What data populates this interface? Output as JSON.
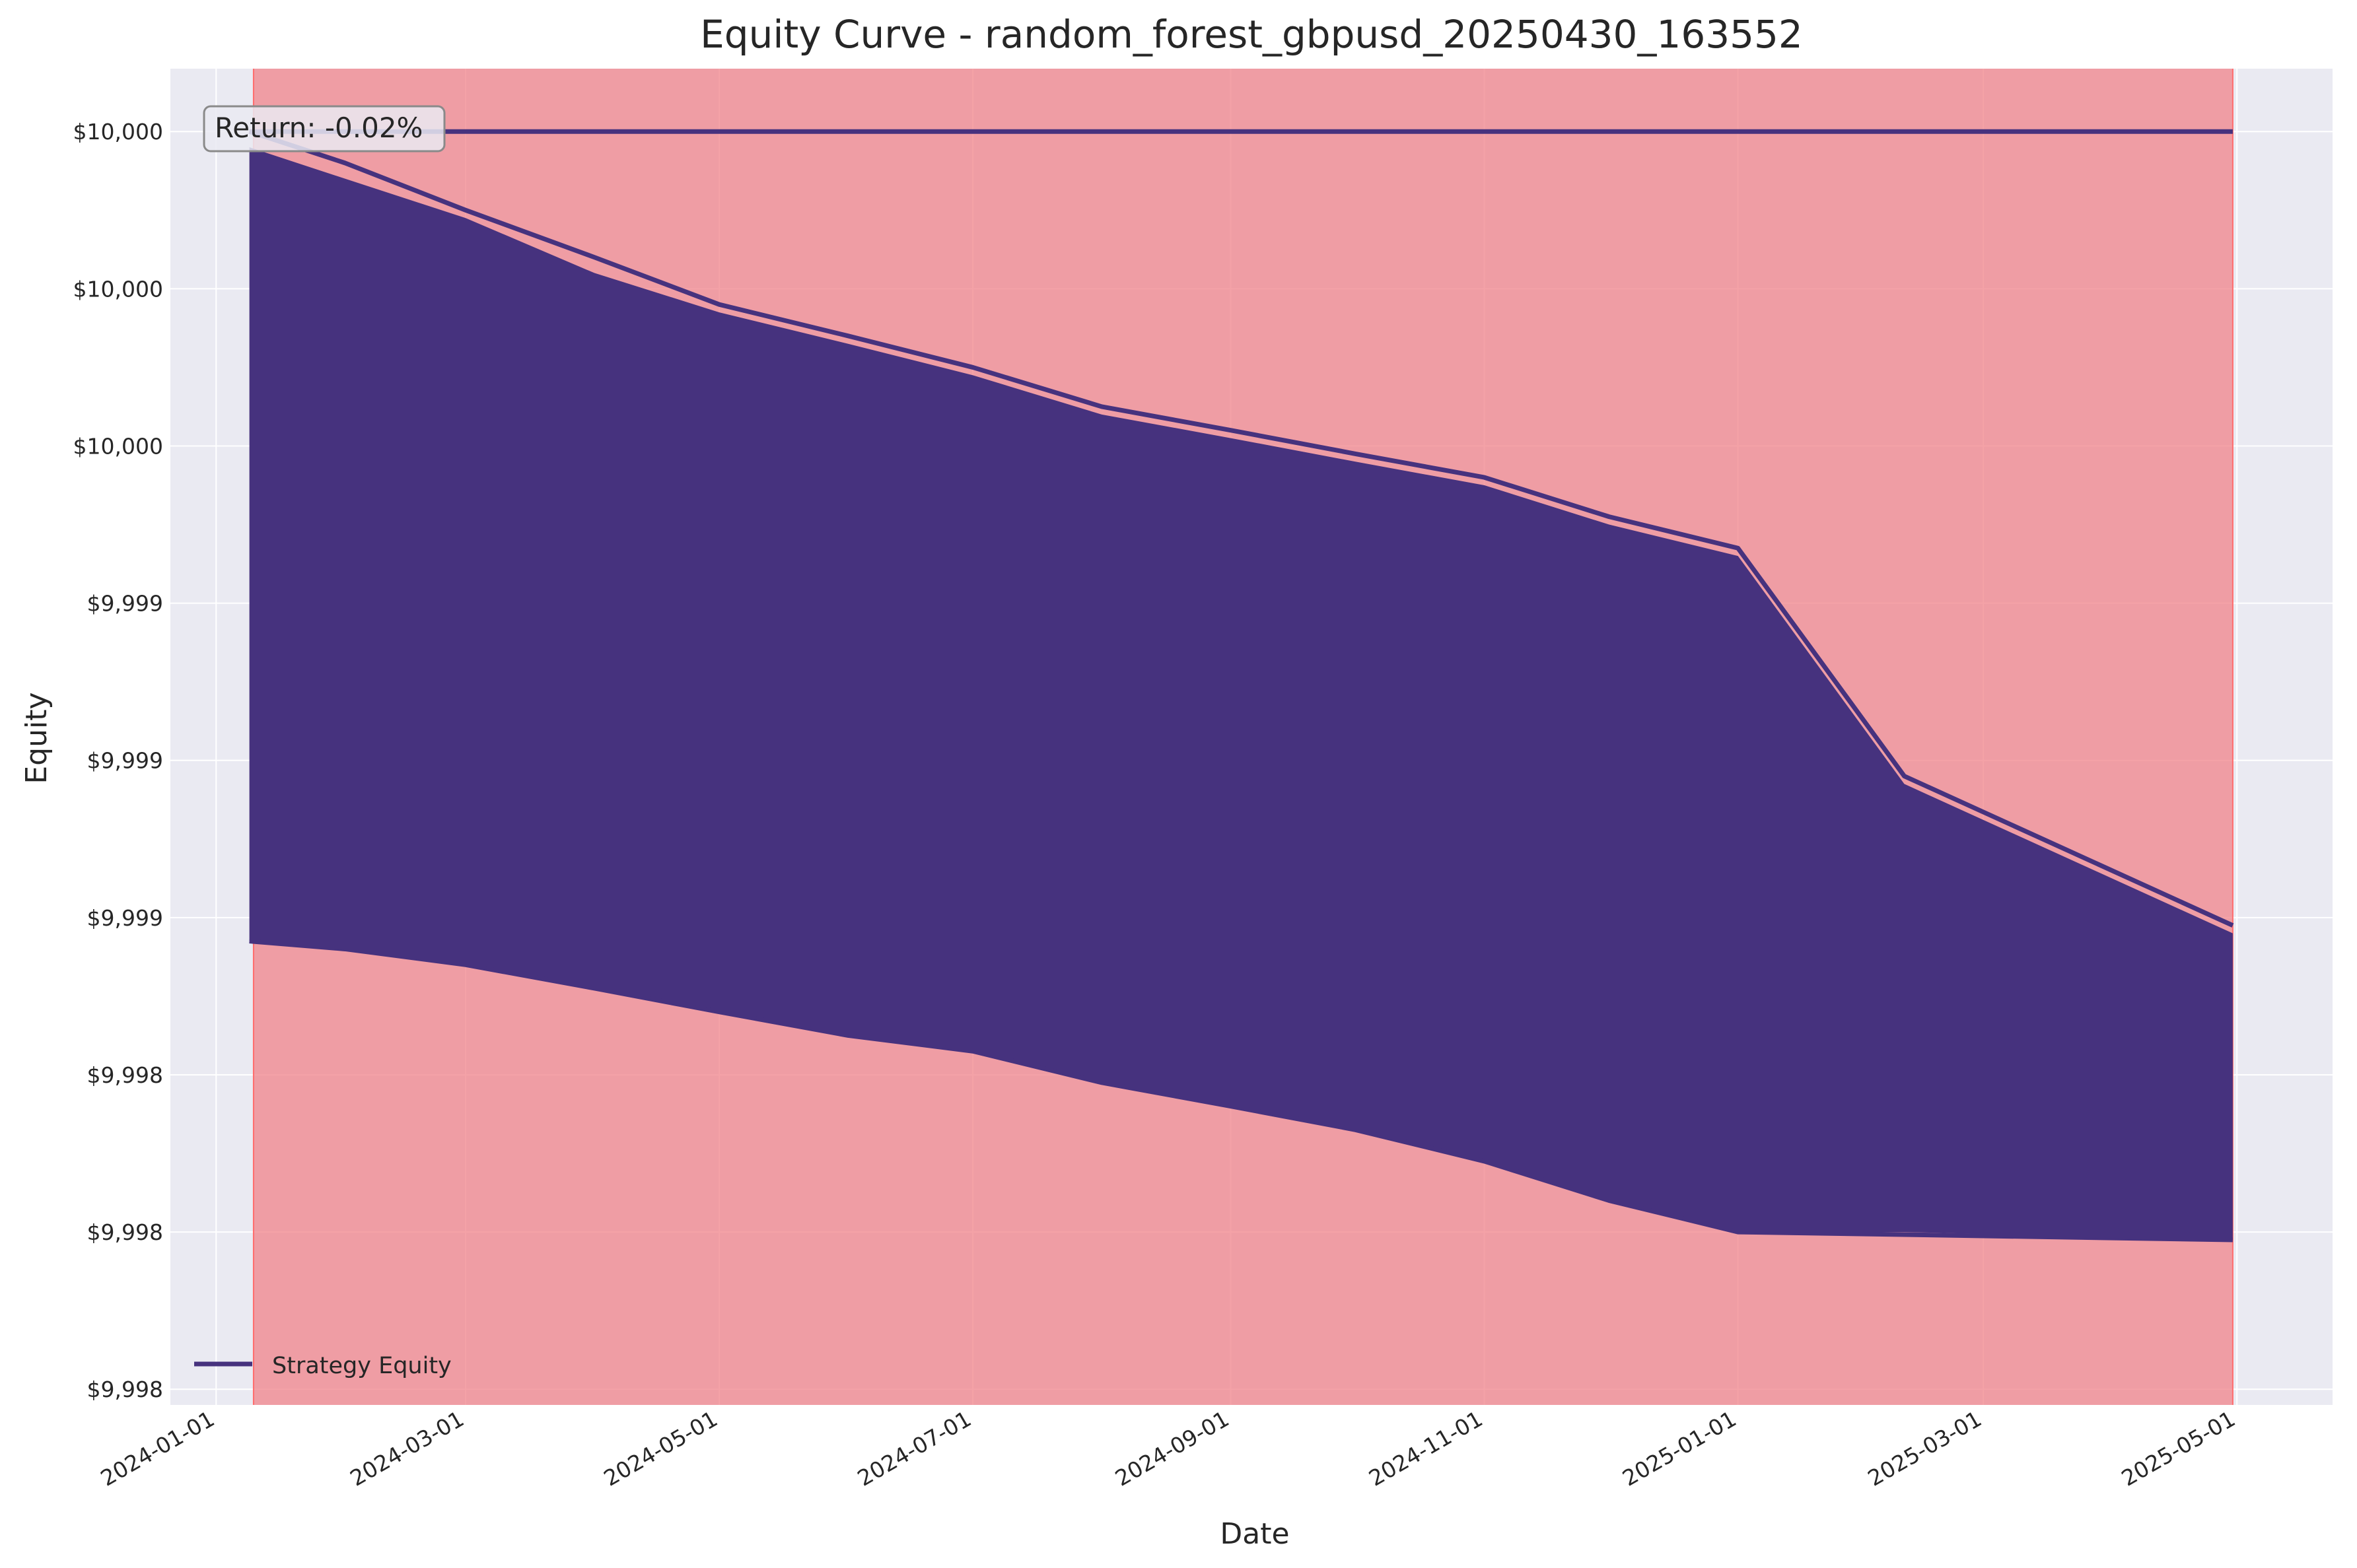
{
  "chart_data": {
    "type": "line",
    "title": "Equity Curve - random_forest_gbpusd_20250430_163552",
    "xlabel": "Date",
    "ylabel": "Equity",
    "x_ticks": [
      "2024-01-01",
      "2024-03-01",
      "2024-05-01",
      "2024-07-01",
      "2024-09-01",
      "2024-11-01",
      "2025-01-01",
      "2025-03-01",
      "2025-05-01"
    ],
    "y_ticks": [
      {
        "value": 9997.62,
        "label": "$9,998"
      },
      {
        "value": 9997.82,
        "label": "$9,998"
      },
      {
        "value": 9998.02,
        "label": "$9,998"
      },
      {
        "value": 9998.22,
        "label": "$9,999"
      },
      {
        "value": 9998.42,
        "label": "$9,999"
      },
      {
        "value": 9998.62,
        "label": "$9,999"
      },
      {
        "value": 9998.82,
        "label": "$10,000"
      },
      {
        "value": 9999.02,
        "label": "$10,000"
      },
      {
        "value": 9999.22,
        "label": "$10,000"
      }
    ],
    "xlim": [
      "2023-12-21",
      "2025-05-24"
    ],
    "ylim": [
      9997.6,
      9999.3
    ],
    "grid": true,
    "legend": {
      "position": "bottom-left",
      "entries": [
        "Strategy Equity"
      ]
    },
    "annotation": "Return: -0.02%",
    "shaded_region": {
      "start": "2024-01-10",
      "end": "2025-04-30",
      "color": "#f0838a"
    },
    "series": [
      {
        "name": "Strategy Equity",
        "color": "#46327e",
        "x": [
          "2024-01-09",
          "2025-04-30"
        ],
        "values": [
          9999.22,
          9999.22
        ]
      },
      {
        "color": "#46327e",
        "x": [
          "2024-01-09",
          "2024-02-01",
          "2024-03-01",
          "2024-04-01",
          "2024-05-01",
          "2024-06-01",
          "2024-07-01",
          "2024-08-01",
          "2024-09-01",
          "2024-10-01",
          "2024-11-01",
          "2024-12-01",
          "2025-01-01",
          "2025-02-10",
          "2025-04-30"
        ],
        "values": [
          9999.22,
          9999.18,
          9999.12,
          9999.06,
          9999.0,
          9998.96,
          9998.92,
          9998.87,
          9998.84,
          9998.81,
          9998.78,
          9998.73,
          9998.69,
          9998.4,
          9998.21
        ]
      },
      {
        "color": "#46327e",
        "x": [
          "2024-01-09",
          "2024-02-01",
          "2024-03-01",
          "2024-04-01",
          "2024-05-01",
          "2024-06-01",
          "2024-07-01",
          "2024-08-01",
          "2024-09-01",
          "2024-10-01",
          "2024-11-01",
          "2024-12-01",
          "2025-01-01",
          "2025-04-30"
        ],
        "values": [
          9998.19,
          9998.18,
          9998.16,
          9998.13,
          9998.1,
          9998.07,
          9998.05,
          9998.01,
          9997.98,
          9997.95,
          9997.91,
          9997.86,
          9997.82,
          9997.81
        ]
      }
    ],
    "fill_band": {
      "x": [
        "2024-01-09",
        "2024-02-01",
        "2024-03-01",
        "2024-04-01",
        "2024-05-01",
        "2024-06-01",
        "2024-07-01",
        "2024-08-01",
        "2024-09-01",
        "2024-10-01",
        "2024-11-01",
        "2024-12-01",
        "2025-01-01",
        "2025-02-10",
        "2025-04-30"
      ],
      "lower": [
        9998.19,
        9998.18,
        9998.16,
        9998.13,
        9998.1,
        9998.07,
        9998.05,
        9998.01,
        9997.98,
        9997.95,
        9997.91,
        9997.86,
        9997.82,
        9997.82,
        9997.81
      ],
      "upper": [
        9999.2,
        9999.16,
        9999.11,
        9999.04,
        9998.99,
        9998.95,
        9998.91,
        9998.86,
        9998.83,
        9998.8,
        9998.77,
        9998.72,
        9998.68,
        9998.39,
        9998.2
      ]
    }
  }
}
